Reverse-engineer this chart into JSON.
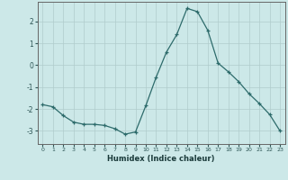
{
  "x": [
    0,
    1,
    2,
    3,
    4,
    5,
    6,
    7,
    8,
    9,
    10,
    11,
    12,
    13,
    14,
    15,
    16,
    17,
    18,
    19,
    20,
    21,
    22,
    23
  ],
  "y": [
    -1.8,
    -1.9,
    -2.3,
    -2.6,
    -2.7,
    -2.7,
    -2.75,
    -2.9,
    -3.15,
    -3.05,
    -1.85,
    -0.55,
    0.6,
    1.4,
    2.6,
    2.45,
    1.6,
    0.1,
    -0.3,
    -0.75,
    -1.3,
    -1.75,
    -2.25,
    -3.0
  ],
  "xlabel": "Humidex (Indice chaleur)",
  "xlim": [
    -0.5,
    23.5
  ],
  "ylim": [
    -3.6,
    2.9
  ],
  "yticks": [
    -3,
    -2,
    -1,
    0,
    1,
    2
  ],
  "xticks": [
    0,
    1,
    2,
    3,
    4,
    5,
    6,
    7,
    8,
    9,
    10,
    11,
    12,
    13,
    14,
    15,
    16,
    17,
    18,
    19,
    20,
    21,
    22,
    23
  ],
  "line_color": "#2d6b6b",
  "marker": "+",
  "bg_color": "#cce8e8",
  "grid_color": "#b0cccc",
  "spine_color": "#666666",
  "tick_color": "#2d5555",
  "label_color": "#1a3a3a"
}
